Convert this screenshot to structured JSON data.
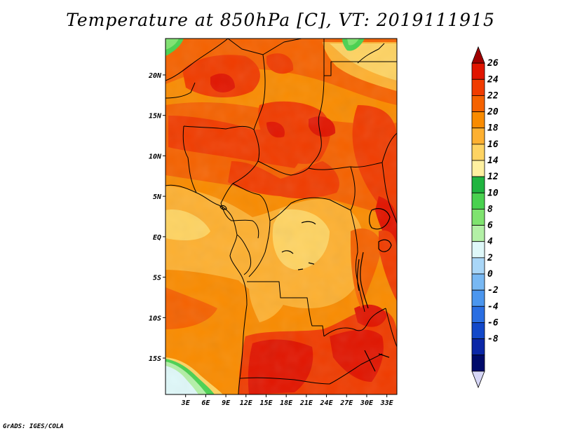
{
  "title": "Temperature at 850hPa [C], VT: 2019111915",
  "footer": "GrADS: IGES/COLA",
  "map": {
    "region": "Central Africa",
    "lat_ticks": [
      "20N",
      "15N",
      "10N",
      "5N",
      "EQ",
      "5S",
      "10S",
      "15S"
    ],
    "lat_values": [
      20,
      15,
      10,
      5,
      0,
      -5,
      -10,
      -15
    ],
    "lon_ticks": [
      "3E",
      "6E",
      "9E",
      "12E",
      "15E",
      "18E",
      "21E",
      "24E",
      "27E",
      "30E",
      "33E"
    ],
    "lon_values": [
      3,
      6,
      9,
      12,
      15,
      18,
      21,
      24,
      27,
      30,
      33
    ],
    "lat_range": [
      -19.5,
      24.5
    ],
    "lon_range": [
      0,
      34.5
    ]
  },
  "colorbar": {
    "labels": [
      "26",
      "24",
      "22",
      "20",
      "18",
      "16",
      "14",
      "12",
      "10",
      "8",
      "6",
      "4",
      "2",
      "0",
      "-2",
      "-4",
      "-6",
      "-8"
    ],
    "colors": [
      "#a00000",
      "#e11500",
      "#f03c00",
      "#f56200",
      "#f98b00",
      "#fdb031",
      "#fed362",
      "#fef0a0",
      "#1fb43f",
      "#49d14f",
      "#7fe36f",
      "#b3f0a6",
      "#dff8f9",
      "#a9d6f7",
      "#78b8f3",
      "#4b96ee",
      "#2a6ee2",
      "#1248c9",
      "#0b27a7",
      "#000b6b",
      "#d6d6f6"
    ]
  }
}
